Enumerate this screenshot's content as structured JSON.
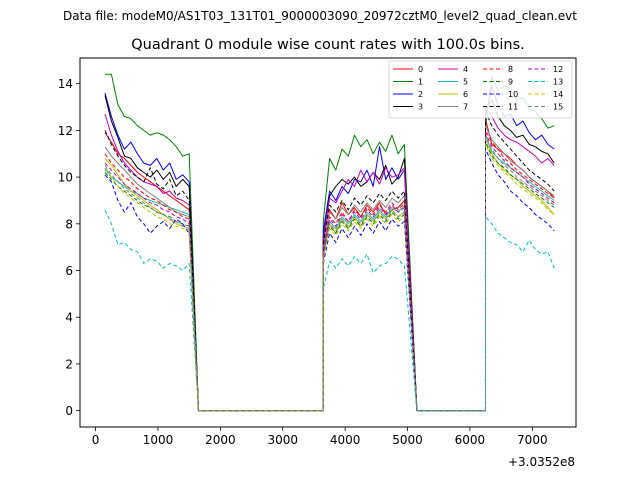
{
  "suptitle": "Data file: modeM0/AS1T03_131T01_9000003090_20972cztM0_level2_quad_clean.evt",
  "chart_data": {
    "type": "line",
    "title": "Quadrant 0 module wise count rates with 100.0s bins.",
    "xlabel": "",
    "ylabel": "",
    "x_offset_label": "+3.0352e8",
    "xlim": [
      -250,
      7700
    ],
    "ylim": [
      -0.7,
      15.1
    ],
    "xticks": [
      0,
      1000,
      2000,
      3000,
      4000,
      5000,
      6000,
      7000
    ],
    "xtick_labels": [
      "0",
      "1000",
      "2000",
      "3000",
      "4000",
      "5000",
      "6000",
      "7000"
    ],
    "yticks": [
      0,
      2,
      4,
      6,
      8,
      10,
      12,
      14
    ],
    "ytick_labels": [
      "0",
      "2",
      "4",
      "6",
      "8",
      "10",
      "12",
      "14"
    ],
    "legend_position": "top-right",
    "segments": [
      {
        "x_start": 150,
        "x_end": 1500
      },
      {
        "x_start": 1650,
        "x_end": 3650
      },
      {
        "x_start": 3650,
        "x_end": 4950
      },
      {
        "x_start": 5150,
        "x_end": 6250
      },
      {
        "x_start": 6250,
        "x_end": 7350
      }
    ],
    "series": [
      {
        "name": "0",
        "color": "#ff0000",
        "dash": "solid",
        "seg1": [
          11.9,
          11.5,
          11.0,
          10.8,
          10.5,
          10.2,
          10.0,
          9.8,
          9.6,
          9.4,
          9.2,
          9.0,
          8.8,
          8.6
        ],
        "seg3": [
          7.0,
          8.6,
          8.2,
          8.9,
          8.4,
          8.7,
          8.3,
          8.8,
          8.5,
          8.9,
          8.4,
          8.6,
          8.7,
          9.0
        ],
        "seg5": [
          12.5,
          11.4,
          11.2,
          11.0,
          10.8,
          10.5,
          10.3,
          10.0,
          9.8,
          9.6,
          9.4,
          9.1
        ]
      },
      {
        "name": "1",
        "color": "#008000",
        "dash": "solid",
        "seg1": [
          14.4,
          14.4,
          13.1,
          12.6,
          12.5,
          12.2,
          12.0,
          11.8,
          11.9,
          11.8,
          11.6,
          11.3,
          10.9,
          11.0
        ],
        "seg3": [
          8.1,
          10.8,
          10.3,
          11.2,
          10.9,
          11.8,
          11.3,
          11.6,
          11.0,
          11.5,
          11.1,
          11.8,
          11.0,
          11.4
        ],
        "seg5": [
          12.1,
          14.3,
          13.7,
          13.9,
          13.8,
          13.3,
          13.4,
          12.9,
          12.8,
          12.5,
          12.1,
          12.2
        ]
      },
      {
        "name": "2",
        "color": "#0000ff",
        "dash": "solid",
        "seg1": [
          13.6,
          12.6,
          11.8,
          11.2,
          11.5,
          11.0,
          10.6,
          10.5,
          10.8,
          10.3,
          10.6,
          9.9,
          10.1,
          9.8
        ],
        "seg3": [
          7.7,
          9.4,
          9.0,
          9.6,
          9.3,
          9.9,
          9.8,
          10.3,
          9.6,
          11.3,
          9.9,
          10.4,
          9.9,
          10.3
        ],
        "seg5": [
          12.6,
          13.9,
          13.1,
          12.6,
          12.7,
          12.2,
          12.4,
          11.9,
          11.6,
          11.8,
          11.4,
          11.2
        ]
      },
      {
        "name": "3",
        "color": "#000000",
        "dash": "solid",
        "seg1": [
          13.5,
          12.4,
          11.7,
          10.9,
          10.8,
          10.4,
          10.2,
          10.0,
          10.3,
          9.9,
          10.2,
          9.6,
          9.9,
          9.6
        ],
        "seg3": [
          7.4,
          9.2,
          9.6,
          9.9,
          9.7,
          10.0,
          9.6,
          9.8,
          10.2,
          9.9,
          10.5,
          9.7,
          10.0,
          10.8
        ],
        "seg5": [
          12.9,
          13.3,
          12.6,
          12.2,
          12.0,
          11.7,
          11.8,
          11.4,
          11.3,
          11.1,
          11.0,
          10.6
        ]
      },
      {
        "name": "4",
        "color": "#bf00bf",
        "dash": "solid",
        "seg1": [
          12.7,
          11.8,
          11.1,
          10.6,
          10.3,
          10.0,
          9.8,
          9.7,
          9.6,
          9.3,
          9.4,
          9.1,
          9.0,
          8.8
        ],
        "seg3": [
          7.3,
          9.1,
          8.9,
          9.4,
          9.9,
          9.6,
          10.3,
          9.8,
          10.2,
          9.7,
          10.4,
          10.0,
          10.1,
          10.4
        ],
        "seg5": [
          13.0,
          12.6,
          12.1,
          11.8,
          11.6,
          11.5,
          11.3,
          11.1,
          10.9,
          10.6,
          10.8,
          10.5
        ]
      },
      {
        "name": "5",
        "color": "#1abc9c",
        "dash": "solid",
        "seg1": [
          10.4,
          10.0,
          9.8,
          9.6,
          9.4,
          9.3,
          9.1,
          9.0,
          8.9,
          8.8,
          8.7,
          8.6,
          8.5,
          8.4
        ],
        "seg3": [
          6.9,
          8.1,
          7.8,
          8.3,
          8.0,
          8.4,
          8.1,
          8.5,
          8.2,
          8.6,
          8.3,
          8.7,
          8.5,
          8.8
        ],
        "seg5": [
          11.8,
          11.1,
          10.8,
          10.6,
          10.4,
          10.2,
          10.0,
          9.8,
          9.6,
          9.4,
          9.2,
          9.0
        ]
      },
      {
        "name": "6",
        "color": "#bfbf00",
        "dash": "solid",
        "seg1": [
          10.8,
          10.5,
          10.1,
          9.7,
          9.4,
          9.2,
          9.0,
          8.8,
          8.6,
          8.4,
          8.2,
          8.0,
          7.9,
          7.8
        ],
        "seg3": [
          6.6,
          8.0,
          7.6,
          8.2,
          7.8,
          8.3,
          7.9,
          8.4,
          8.1,
          8.5,
          8.2,
          8.6,
          8.3,
          8.5
        ],
        "seg5": [
          11.6,
          11.0,
          10.6,
          10.3,
          10.1,
          9.9,
          9.6,
          9.4,
          9.2,
          9.0,
          8.7,
          8.4
        ]
      },
      {
        "name": "7",
        "color": "#808080",
        "dash": "solid",
        "seg1": [
          11.3,
          10.9,
          10.6,
          10.3,
          10.0,
          9.7,
          9.5,
          9.3,
          9.1,
          8.9,
          8.7,
          8.5,
          8.4,
          8.3
        ],
        "seg3": [
          7.0,
          8.5,
          8.2,
          8.7,
          8.4,
          8.8,
          8.5,
          8.9,
          8.6,
          9.0,
          8.7,
          9.1,
          8.9,
          9.2
        ],
        "seg5": [
          12.2,
          11.6,
          11.3,
          11.0,
          10.7,
          10.5,
          10.3,
          10.0,
          9.8,
          9.6,
          9.4,
          9.2
        ]
      },
      {
        "name": "8",
        "color": "#ff0000",
        "dash": "dashed",
        "seg1": [
          11.0,
          10.6,
          10.3,
          10.0,
          9.8,
          9.5,
          9.3,
          9.1,
          9.0,
          8.8,
          8.6,
          8.5,
          8.3,
          8.2
        ],
        "seg3": [
          6.8,
          8.3,
          8.0,
          8.5,
          8.1,
          8.6,
          8.3,
          8.7,
          8.4,
          8.8,
          8.5,
          8.9,
          8.6,
          8.9
        ],
        "seg5": [
          12.0,
          11.5,
          11.2,
          10.8,
          10.6,
          10.3,
          10.1,
          9.9,
          9.7,
          9.5,
          9.3,
          9.1
        ]
      },
      {
        "name": "9",
        "color": "#008000",
        "dash": "dashed",
        "seg1": [
          10.2,
          9.9,
          9.6,
          9.4,
          9.2,
          9.0,
          8.8,
          8.7,
          8.5,
          8.4,
          8.3,
          8.1,
          8.0,
          7.9
        ],
        "seg3": [
          6.7,
          7.9,
          7.6,
          8.1,
          7.8,
          8.2,
          7.9,
          8.3,
          8.0,
          8.4,
          8.1,
          8.5,
          8.2,
          8.4
        ],
        "seg5": [
          11.5,
          10.9,
          10.6,
          10.4,
          10.1,
          9.9,
          9.7,
          9.5,
          9.3,
          9.1,
          8.9,
          8.7
        ]
      },
      {
        "name": "10",
        "color": "#0000ff",
        "dash": "dashed",
        "seg1": [
          10.1,
          9.8,
          9.0,
          8.5,
          8.9,
          8.3,
          8.0,
          7.6,
          7.9,
          8.1,
          7.8,
          8.2,
          8.0,
          7.6
        ],
        "seg3": [
          6.3,
          7.6,
          7.2,
          7.8,
          7.4,
          7.9,
          7.5,
          8.0,
          7.6,
          8.1,
          7.7,
          8.2,
          7.9,
          8.1
        ],
        "seg5": [
          11.2,
          10.6,
          10.1,
          9.8,
          9.4,
          9.2,
          8.9,
          8.7,
          8.4,
          8.2,
          8.0,
          7.7
        ]
      },
      {
        "name": "11",
        "color": "#000000",
        "dash": "dashed",
        "seg1": [
          12.0,
          11.4,
          10.9,
          10.5,
          10.2,
          10.0,
          9.8,
          10.4,
          9.7,
          9.5,
          9.9,
          9.2,
          9.4,
          9.0
        ],
        "seg3": [
          7.2,
          8.8,
          8.5,
          9.0,
          8.6,
          9.1,
          8.8,
          9.2,
          8.9,
          9.3,
          9.0,
          9.4,
          9.1,
          9.4
        ],
        "seg5": [
          12.8,
          12.2,
          11.8,
          11.5,
          11.2,
          10.9,
          10.6,
          10.3,
          10.1,
          9.9,
          9.7,
          9.4
        ]
      },
      {
        "name": "12",
        "color": "#bf00bf",
        "dash": "dashed",
        "seg1": [
          10.6,
          10.3,
          10.0,
          9.7,
          9.5,
          9.3,
          9.1,
          8.9,
          8.8,
          8.6,
          8.5,
          8.3,
          8.2,
          8.0
        ],
        "seg3": [
          6.9,
          8.2,
          7.9,
          8.4,
          8.1,
          8.5,
          8.2,
          8.6,
          8.3,
          8.7,
          8.4,
          8.8,
          8.5,
          8.7
        ],
        "seg5": [
          11.9,
          11.3,
          11.0,
          10.7,
          10.4,
          10.2,
          10.0,
          9.7,
          9.5,
          9.3,
          9.1,
          8.9
        ]
      },
      {
        "name": "13",
        "color": "#00bfbf",
        "dash": "dashed",
        "seg1": [
          8.6,
          8.0,
          7.1,
          7.2,
          6.9,
          6.8,
          6.3,
          6.5,
          6.4,
          6.1,
          6.3,
          6.2,
          6.0,
          6.3
        ],
        "seg3": [
          5.2,
          6.4,
          6.1,
          6.5,
          6.2,
          6.6,
          6.3,
          6.7,
          5.9,
          6.2,
          6.3,
          6.6,
          6.5,
          6.2
        ],
        "seg5": [
          8.3,
          8.0,
          7.6,
          7.4,
          7.2,
          7.1,
          6.8,
          7.3,
          6.9,
          6.7,
          6.8,
          6.1
        ]
      },
      {
        "name": "14",
        "color": "#bfbf00",
        "dash": "dashed",
        "seg1": [
          10.3,
          10.0,
          9.6,
          9.3,
          9.1,
          8.9,
          8.7,
          8.5,
          8.3,
          8.2,
          8.0,
          7.9,
          7.8,
          7.7
        ],
        "seg3": [
          6.5,
          7.8,
          7.5,
          8.0,
          7.7,
          8.1,
          7.8,
          8.2,
          7.9,
          8.3,
          8.0,
          8.4,
          8.1,
          8.3
        ],
        "seg5": [
          11.4,
          10.8,
          10.5,
          10.2,
          10.0,
          9.7,
          9.5,
          9.3,
          9.1,
          8.9,
          8.6,
          8.4
        ]
      },
      {
        "name": "15",
        "color": "#808080",
        "dash": "dashed",
        "seg1": [
          10.5,
          10.1,
          9.8,
          9.5,
          9.3,
          9.1,
          8.9,
          8.7,
          8.5,
          8.4,
          8.2,
          8.1,
          7.9,
          7.8
        ],
        "seg3": [
          6.6,
          8.0,
          7.7,
          8.2,
          7.9,
          8.3,
          8.0,
          8.4,
          8.1,
          8.5,
          8.2,
          8.6,
          8.3,
          8.5
        ],
        "seg5": [
          11.7,
          11.2,
          10.8,
          10.5,
          10.3,
          10.0,
          9.8,
          9.6,
          9.4,
          9.2,
          9.0,
          8.8
        ]
      }
    ]
  }
}
